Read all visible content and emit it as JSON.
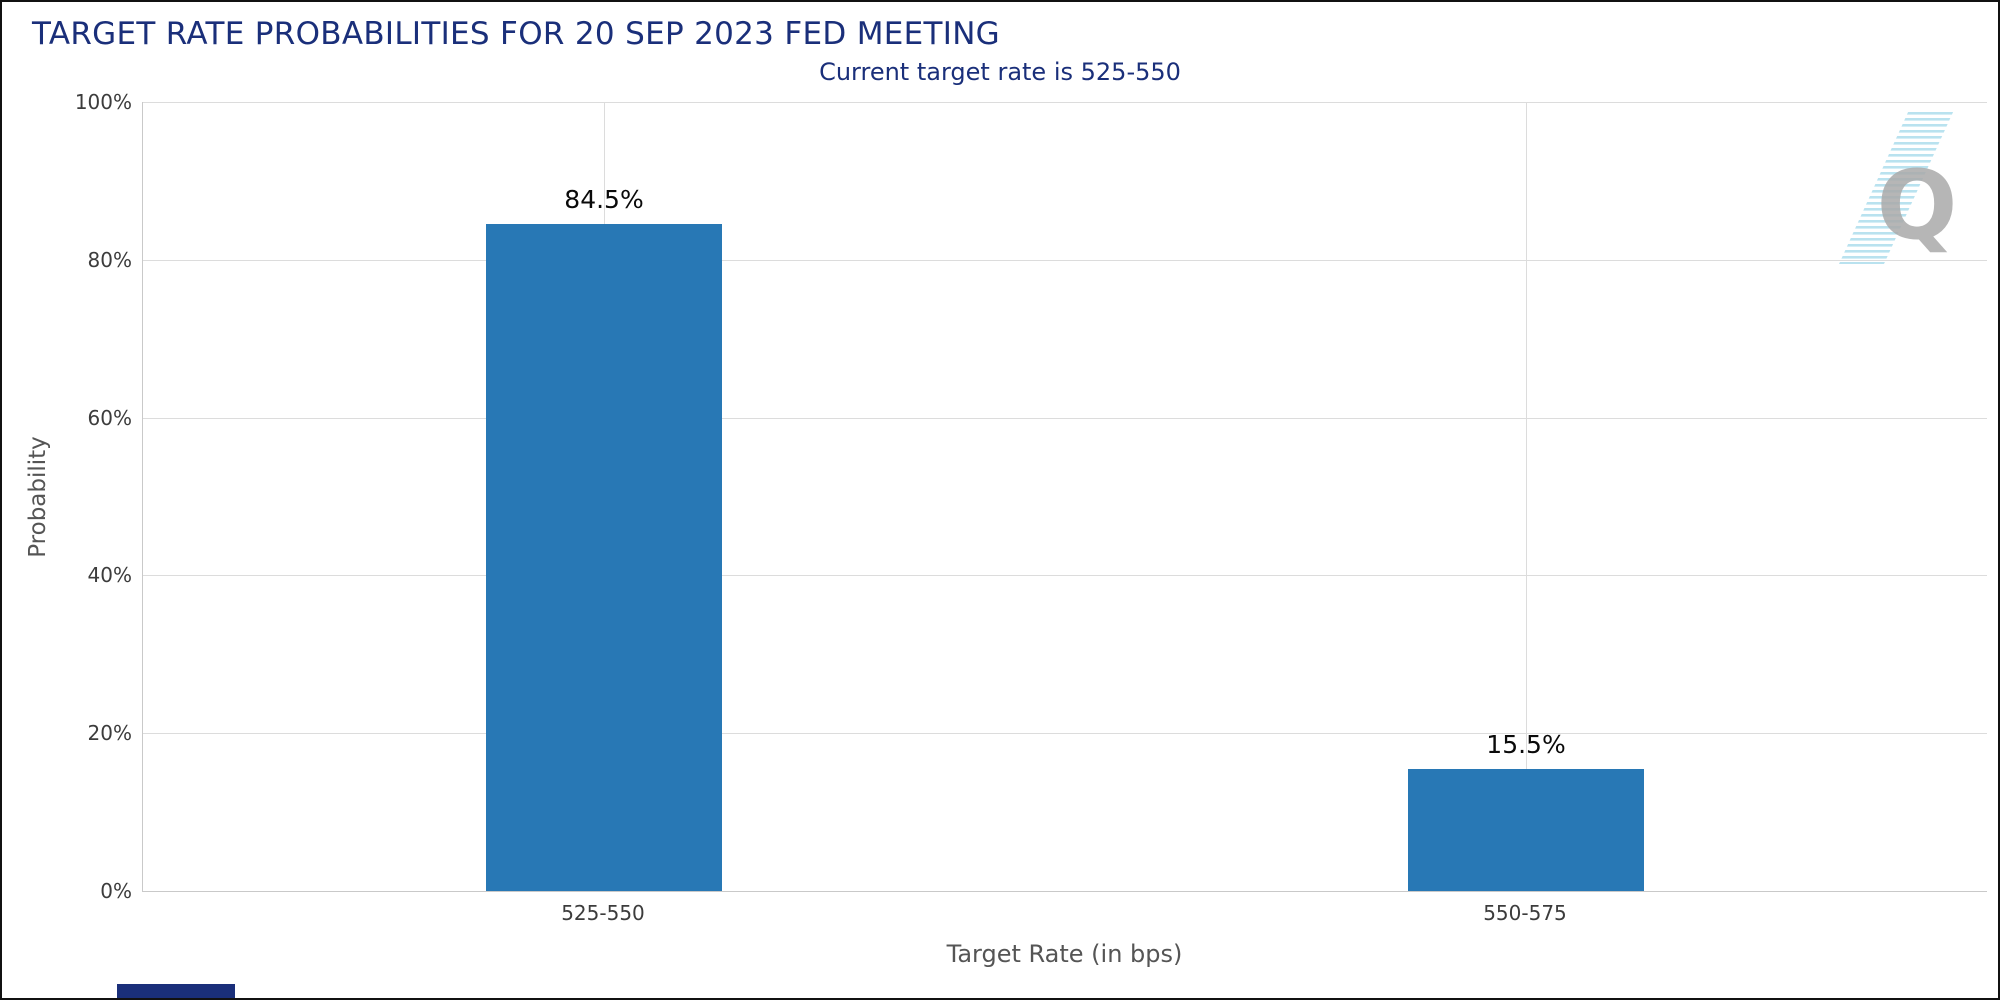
{
  "chart_data": {
    "type": "bar",
    "title": "TARGET RATE PROBABILITIES FOR 20 SEP 2023 FED MEETING",
    "subtitle": "Current target rate is 525-550",
    "categories": [
      "525-550",
      "550-575"
    ],
    "values": [
      84.5,
      15.5
    ],
    "value_labels": [
      "84.5%",
      "15.5%"
    ],
    "xlabel": "Target Rate (in bps)",
    "ylabel": "Probability",
    "ylim": [
      0,
      100
    ],
    "yticks": [
      0,
      20,
      40,
      60,
      80,
      100
    ],
    "ytick_labels": [
      "0%",
      "20%",
      "40%",
      "60%",
      "80%",
      "100%"
    ],
    "grid": true,
    "legend": false,
    "bar_color": "#2878b5",
    "title_color": "#1a2f7a",
    "watermark": "Q"
  }
}
